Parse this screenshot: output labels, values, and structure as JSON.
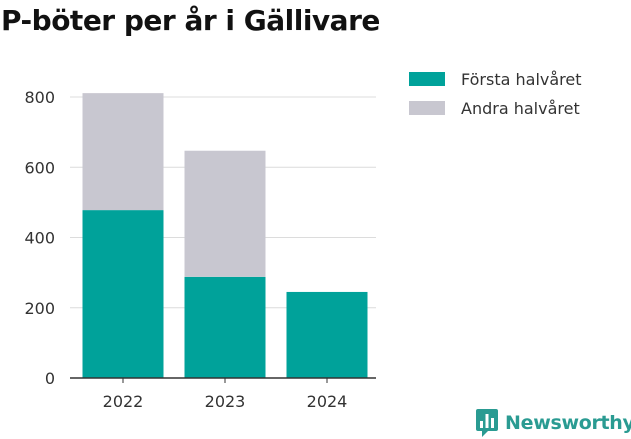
{
  "chart_data": {
    "type": "bar",
    "stacked": true,
    "title": "P-böter per år i Gällivare",
    "categories": [
      "2022",
      "2023",
      "2024"
    ],
    "series": [
      {
        "name": "Första halvåret",
        "color": "#00a29a",
        "values": [
          478,
          288,
          245
        ]
      },
      {
        "name": "Andra halvåret",
        "color": "#c8c7d0",
        "values": [
          333,
          359,
          0
        ]
      }
    ],
    "ylim": [
      0,
      800
    ],
    "yticks": [
      0,
      200,
      400,
      600,
      800
    ],
    "grid": true,
    "legend_position": "top-right"
  },
  "brand": {
    "name": "Newsworthy",
    "icon": "newsworthy-logo-icon",
    "color": "#2a9b92"
  }
}
